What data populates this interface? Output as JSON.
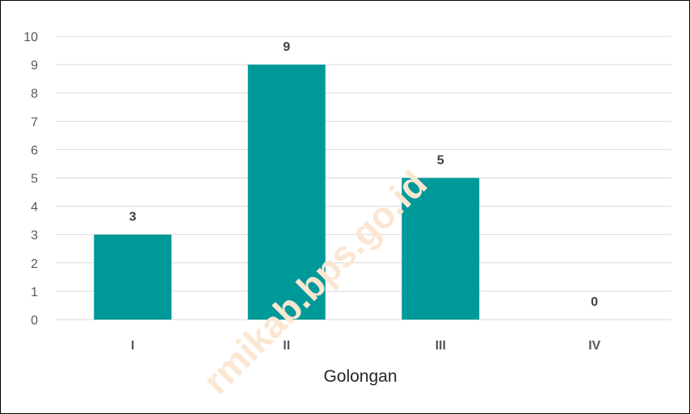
{
  "chart_data": {
    "type": "bar",
    "categories": [
      "I",
      "II",
      "III",
      "IV"
    ],
    "values": [
      3,
      9,
      5,
      0
    ],
    "data_labels": [
      "3",
      "9",
      "5",
      "0"
    ],
    "title": "",
    "xlabel": "Golongan",
    "ylabel": "",
    "ylim": [
      0,
      10
    ],
    "yticks": [
      "0",
      "1",
      "2",
      "3",
      "4",
      "5",
      "6",
      "7",
      "8",
      "9",
      "10"
    ],
    "grid": true,
    "legend": "none",
    "bar_color": "#009999",
    "gridline_color": "#d9d9d9"
  },
  "watermark": {
    "text": "rmikab.bps.go.id",
    "color": "#fbe6d2"
  }
}
